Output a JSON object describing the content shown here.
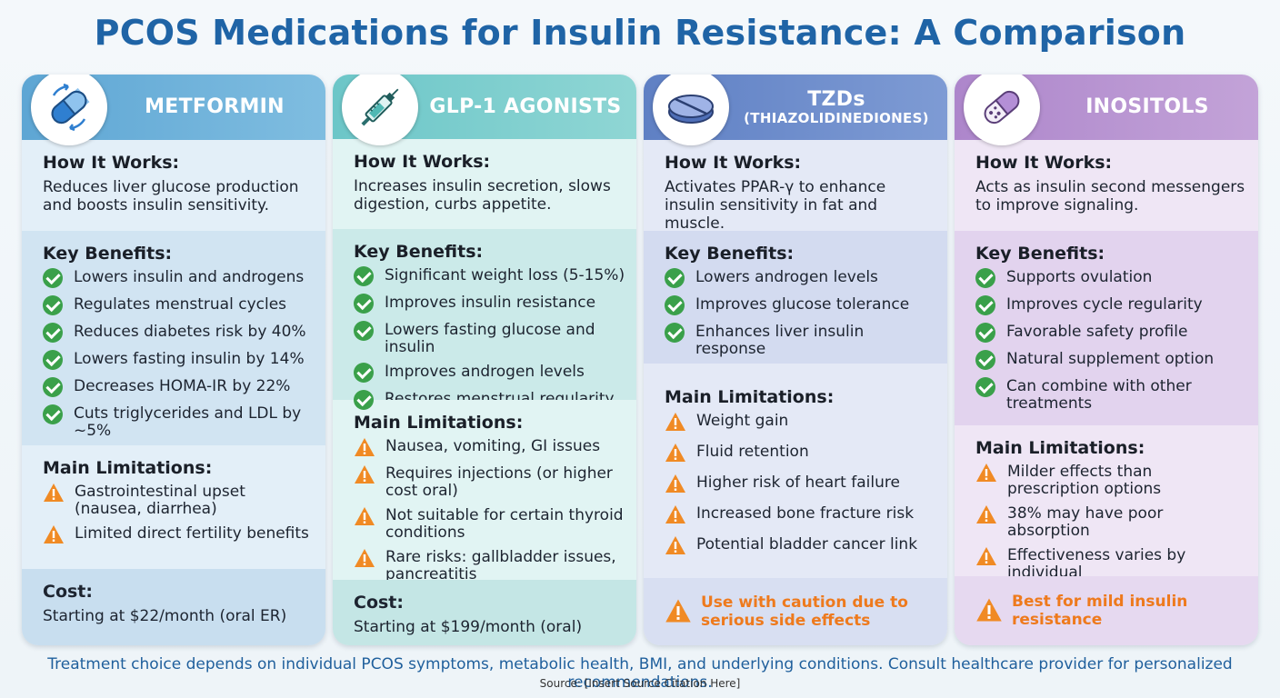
{
  "title": "PCOS Medications for Insulin Resistance: A Comparison",
  "cards": [
    {
      "name": "METFORMIN",
      "icon": "capsule-icon",
      "how_title": "How It Works:",
      "how_text": "Reduces liver glucose production and boosts insulin sensitivity.",
      "benefits_title": "Key Benefits:",
      "benefits": [
        "Lowers insulin and androgens",
        "Regulates menstrual cycles",
        "Reduces diabetes risk by 40%",
        "Lowers fasting insulin by 14%",
        "Decreases HOMA-IR by 22%",
        "Cuts triglycerides and LDL by ~5%"
      ],
      "limitations_title": "Main Limitations:",
      "limitations": [
        "Gastrointestinal upset (nausea, diarrhea)",
        "Limited direct fertility benefits"
      ],
      "cost_title": "Cost:",
      "cost_text": "Starting at $22/month (oral ER)"
    },
    {
      "name": "GLP-1 AGONISTS",
      "icon": "injection-pen-icon",
      "how_title": "How It Works:",
      "how_text": "Increases insulin secretion, slows digestion, curbs appetite.",
      "benefits_title": "Key Benefits:",
      "benefits": [
        "Significant weight loss (5-15%)",
        "Improves insulin resistance",
        "Lowers fasting glucose and insulin",
        "Improves androgen levels",
        "Restores menstrual regularity"
      ],
      "limitations_title": "Main Limitations:",
      "limitations": [
        "Nausea, vomiting, GI issues",
        "Requires injections (or higher cost oral)",
        "Not suitable for certain thyroid conditions",
        "Rare risks: gallbladder issues, pancreatitis"
      ],
      "cost_title": "Cost:",
      "cost_text": "Starting at $199/month (oral)"
    },
    {
      "name": "TZDs",
      "subname": "(THIAZOLIDINEDIONES)",
      "icon": "tablet-icon",
      "how_title": "How It Works:",
      "how_text": "Activates PPAR-γ to enhance insulin sensitivity in fat and muscle.",
      "benefits_title": "Key Benefits:",
      "benefits": [
        "Lowers androgen levels",
        "Improves glucose tolerance",
        "Enhances liver insulin response"
      ],
      "limitations_title": "Main Limitations:",
      "limitations": [
        "Weight gain",
        "Fluid retention",
        "Higher risk of heart failure",
        "Increased bone fracture risk",
        "Potential bladder cancer link"
      ],
      "note": "Use with caution due to serious side effects"
    },
    {
      "name": "INOSITOLS",
      "icon": "supplement-capsule-icon",
      "how_title": "How It Works:",
      "how_text": "Acts as insulin second messengers to improve signaling.",
      "benefits_title": "Key Benefits:",
      "benefits": [
        "Supports ovulation",
        "Improves cycle regularity",
        "Favorable safety profile",
        "Natural supplement option",
        "Can combine with other treatments"
      ],
      "limitations_title": "Main Limitations:",
      "limitations": [
        "Milder effects than prescription options",
        "38% may have poor absorption",
        "Effectiveness varies by individual"
      ],
      "note": "Best for mild insulin resistance"
    }
  ],
  "footer": {
    "note": "Treatment choice depends on individual PCOS symptoms, metabolic health, BMI, and underlying conditions. Consult healthcare provider for personalized recommendations.",
    "source": "Source: [Insert Source Citation Here]"
  },
  "colors": {
    "title": "#1f64a6",
    "check": "#3aa04a",
    "warning": "#f08a24",
    "metformin_header": "#6fb1d8",
    "glp1_header": "#7ccfcf",
    "tzd_header": "#6f8fcf",
    "inositol_header": "#b591cf"
  }
}
